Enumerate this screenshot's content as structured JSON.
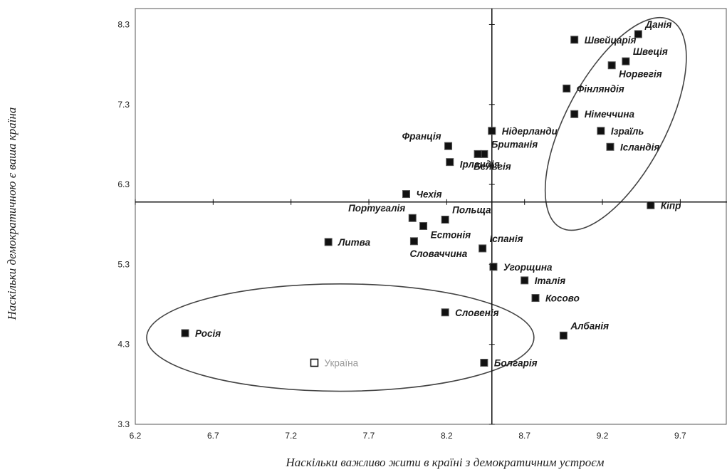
{
  "chart_data": {
    "type": "scatter",
    "xlabel": "Наскільки важливо жити в країні з демократичним устроєм",
    "ylabel": "Наскільки демократичною є ваша країна",
    "xlim": [
      6.2,
      10.0
    ],
    "ylim": [
      3.3,
      8.5
    ],
    "x_ticks": [
      "6.2",
      "6.7",
      "7.2",
      "7.7",
      "8.2",
      "8.7",
      "9.2",
      "9.7"
    ],
    "y_ticks": [
      "3.3",
      "4.3",
      "5.3",
      "6.3",
      "7.3",
      "8.3"
    ],
    "crosshair": {
      "x": 8.49,
      "y": 6.08
    },
    "grid": false,
    "legend": "none",
    "points": [
      {
        "label": "Данія",
        "x": 9.43,
        "y": 8.18,
        "pos": "ne"
      },
      {
        "label": "Швейцарія",
        "x": 9.02,
        "y": 8.11,
        "pos": "e"
      },
      {
        "label": "Швеція",
        "x": 9.35,
        "y": 7.84,
        "pos": "ne"
      },
      {
        "label": "Норвегія",
        "x": 9.26,
        "y": 7.79,
        "pos": "se"
      },
      {
        "label": "Фінляндія",
        "x": 8.97,
        "y": 7.5,
        "pos": "e"
      },
      {
        "label": "Німеччина",
        "x": 9.02,
        "y": 7.18,
        "pos": "e"
      },
      {
        "label": "Ізраїль",
        "x": 9.19,
        "y": 6.97,
        "pos": "e"
      },
      {
        "label": "Ісландія",
        "x": 9.25,
        "y": 6.77,
        "pos": "e"
      },
      {
        "label": "Кіпр",
        "x": 9.51,
        "y": 6.04,
        "pos": "e"
      },
      {
        "label": "Нідерланди",
        "x": 8.49,
        "y": 6.97,
        "pos": "e"
      },
      {
        "label": "Франція",
        "x": 8.21,
        "y": 6.78,
        "pos": "nw"
      },
      {
        "label": "Британія",
        "x": 8.44,
        "y": 6.68,
        "pos": "ne"
      },
      {
        "label": "Ірландія",
        "x": 8.22,
        "y": 6.58,
        "pos": "e2"
      },
      {
        "label": "Бельгія",
        "x": 8.4,
        "y": 6.68,
        "pos": "s"
      },
      {
        "label": "Чехія",
        "x": 7.94,
        "y": 6.18,
        "pos": "e"
      },
      {
        "label": "Португалія",
        "x": 7.98,
        "y": 5.88,
        "pos": "nw"
      },
      {
        "label": "Польща",
        "x": 8.19,
        "y": 5.86,
        "pos": "ne"
      },
      {
        "label": "Естонія",
        "x": 8.05,
        "y": 5.78,
        "pos": "se"
      },
      {
        "label": "Литва",
        "x": 7.44,
        "y": 5.58,
        "pos": "e"
      },
      {
        "label": "Словаччина",
        "x": 7.99,
        "y": 5.59,
        "pos": "s"
      },
      {
        "label": "Іспанія",
        "x": 8.43,
        "y": 5.5,
        "pos": "ne"
      },
      {
        "label": "Угорщина",
        "x": 8.5,
        "y": 5.27,
        "pos": "e"
      },
      {
        "label": "Італія",
        "x": 8.7,
        "y": 5.1,
        "pos": "e"
      },
      {
        "label": "Косово",
        "x": 8.77,
        "y": 4.88,
        "pos": "e"
      },
      {
        "label": "Словенія",
        "x": 8.19,
        "y": 4.7,
        "pos": "e"
      },
      {
        "label": "Албанія",
        "x": 8.95,
        "y": 4.41,
        "pos": "ne"
      },
      {
        "label": "Росія",
        "x": 6.52,
        "y": 4.44,
        "pos": "e"
      },
      {
        "label": "Болгарія",
        "x": 8.44,
        "y": 4.07,
        "pos": "e"
      },
      {
        "label": "Україна",
        "x": 7.35,
        "y": 4.07,
        "pos": "e",
        "marker": "open"
      }
    ],
    "highlight_groups": [
      {
        "members": [
          "Данія",
          "Швейцарія",
          "Швеція",
          "Норвегія",
          "Фінляндія",
          "Німеччина",
          "Ізраїль",
          "Ісландія",
          "Кіпр"
        ],
        "shape": "ellipse"
      },
      {
        "members": [
          "Росія",
          "Україна",
          "Словенія",
          "Болгарія"
        ],
        "shape": "ellipse"
      }
    ],
    "colors": {
      "marker": "#111111",
      "marker_open_stroke": "#111111",
      "open_label": "#9a9a9a",
      "ellipse": "#444444"
    }
  }
}
